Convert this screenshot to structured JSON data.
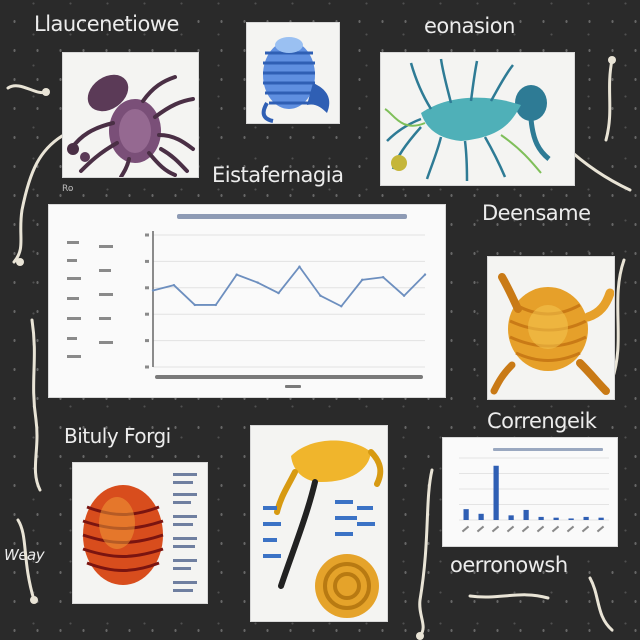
{
  "labels": {
    "top_left": "Llaucenetiowe",
    "top_right": "eonasion",
    "middle": "Eistafernagia",
    "right_middle": "Deensame",
    "left_lower": "Bituly Forgi",
    "right_lower": "Correngeik",
    "bottom_right": "oerronowsh",
    "bottom_left": "Weay",
    "small_mark": "Ro"
  },
  "panel_images": [
    {
      "name": "purple-octopus-illustration",
      "colors": [
        "#4a2f45",
        "#7a4f78",
        "#a77ca2"
      ]
    },
    {
      "name": "blue-ribbed-creature-illustration",
      "colors": [
        "#2f5fb4",
        "#5f8fe0",
        "#9ac0f2"
      ]
    },
    {
      "name": "teal-tentacled-creature-illustration",
      "colors": [
        "#2e7b95",
        "#4fb0b8",
        "#7fbf5a"
      ]
    },
    {
      "name": "orange-shell-creature-illustration",
      "colors": [
        "#c97a16",
        "#e6a02a",
        "#f4c651"
      ]
    },
    {
      "name": "red-orange-ribbed-egg-illustration",
      "colors": [
        "#7a1410",
        "#d84d1d",
        "#f1a13a"
      ]
    },
    {
      "name": "yellow-creature-and-coil-illustration",
      "colors": [
        "#d79a12",
        "#f0b52c",
        "#3b72c5"
      ]
    }
  ],
  "chart_data": [
    {
      "type": "line",
      "title": "",
      "xlabel": "",
      "ylabel": "",
      "x": [
        1,
        2,
        3,
        4,
        5,
        6,
        7,
        8,
        9,
        10,
        11,
        12,
        13,
        14
      ],
      "series": [
        {
          "values": [
            5.8,
            6.2,
            4.7,
            4.7,
            7.0,
            6.4,
            5.6,
            7.6,
            5.4,
            4.6,
            6.6,
            6.8,
            5.4,
            7.0
          ]
        }
      ],
      "ylim": [
        0,
        10
      ],
      "grid": true,
      "color": "#6d8fbf"
    },
    {
      "type": "bar",
      "title": "",
      "x": [
        1,
        2,
        3,
        4,
        5,
        6,
        7,
        8,
        9,
        10
      ],
      "values": [
        1.4,
        0.8,
        7.0,
        0.6,
        1.3,
        0.4,
        0.3,
        0.2,
        0.4,
        0.3
      ],
      "ylim": [
        0,
        8
      ],
      "grid": true,
      "color": "#2f5fb4"
    }
  ]
}
